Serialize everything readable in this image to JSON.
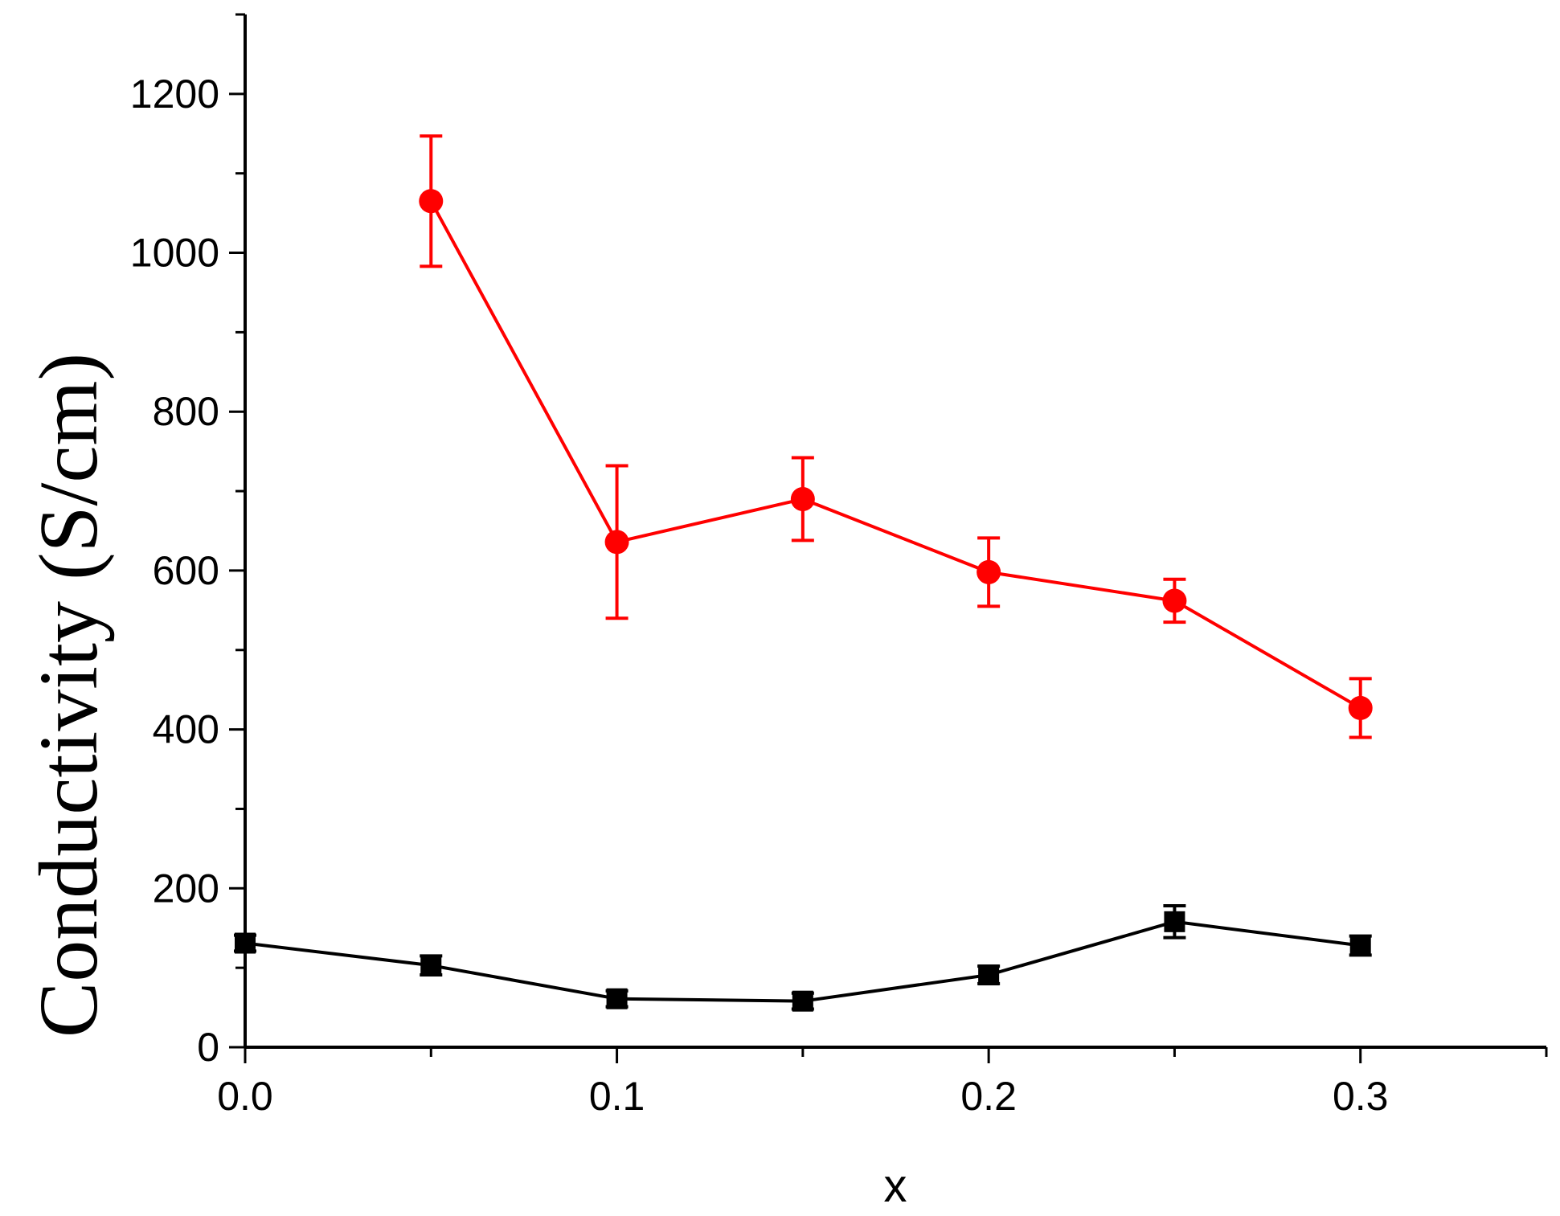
{
  "chart_data": {
    "type": "line",
    "xlabel": "x",
    "ylabel": "Conductivity (S/cm)",
    "xlim": [
      0,
      0.35
    ],
    "ylim": [
      0,
      1300
    ],
    "x_ticks": [
      "0.0",
      "0.1",
      "0.2",
      "0.3"
    ],
    "x_tick_values": [
      0,
      0.1,
      0.2,
      0.3
    ],
    "y_ticks": [
      "0",
      "200",
      "400",
      "600",
      "800",
      "1000",
      "1200"
    ],
    "y_tick_values": [
      0,
      200,
      400,
      600,
      800,
      1000,
      1200
    ],
    "grid": false,
    "legend": "none",
    "series": [
      {
        "color": "#ff0000",
        "marker": "circle",
        "x": [
          0.05,
          0.1,
          0.15,
          0.2,
          0.25,
          0.3
        ],
        "y": [
          1065,
          636,
          690,
          598,
          562,
          427
        ],
        "err": [
          82,
          96,
          52,
          43,
          27,
          37
        ]
      },
      {
        "color": "#000000",
        "marker": "square",
        "x": [
          0.0,
          0.05,
          0.1,
          0.15,
          0.2,
          0.25,
          0.3
        ],
        "y": [
          131,
          103,
          61,
          58,
          91,
          158,
          128
        ],
        "err": [
          10,
          12,
          10,
          10,
          11,
          20,
          12
        ]
      }
    ]
  }
}
